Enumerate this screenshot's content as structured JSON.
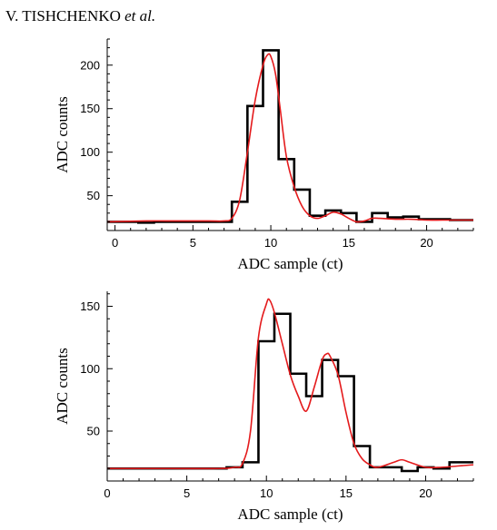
{
  "header": {
    "author": "V. TISHCHENKO",
    "etal": "et al."
  },
  "colors": {
    "histogram": "#000000",
    "fit": "#e41a1c",
    "axis": "#000000"
  },
  "chart_data": [
    {
      "type": "line",
      "xlabel": "ADC sample (ct)",
      "ylabel": "ADC counts",
      "xlim": [
        -0.5,
        23
      ],
      "ylim": [
        10,
        230
      ],
      "xticks": [
        0,
        5,
        10,
        15,
        20
      ],
      "yticks": [
        50,
        100,
        150,
        200
      ],
      "grid": false,
      "series": [
        {
          "style": "step",
          "x": [
            -0.5,
            0.5,
            1.5,
            2.5,
            3.5,
            4.5,
            5.5,
            6.5,
            7.5,
            8.5,
            9.5,
            10.5,
            11.5,
            12.5,
            13.5,
            14.5,
            15.5,
            16.5,
            17.5,
            18.5,
            19.5,
            20.5,
            21.5,
            22.5
          ],
          "values": [
            20,
            20,
            19,
            20,
            20,
            20,
            20,
            20,
            43,
            153,
            217,
            92,
            57,
            27,
            33,
            30,
            20,
            30,
            25,
            26,
            23,
            23,
            22,
            22
          ]
        },
        {
          "style": "smooth",
          "x": [
            -0.5,
            2,
            4,
            6,
            7,
            7.5,
            8,
            8.5,
            9,
            9.5,
            9.8,
            10,
            10.3,
            10.6,
            11,
            11.5,
            12,
            12.5,
            13,
            13.5,
            14,
            14.5,
            15,
            15.5,
            16,
            16.5,
            17,
            18,
            19,
            20,
            21,
            22,
            23
          ],
          "values": [
            20,
            21,
            21,
            21,
            21,
            24,
            45,
            100,
            160,
            200,
            212,
            210,
            190,
            150,
            95,
            60,
            38,
            27,
            24,
            27,
            31,
            29,
            24,
            20,
            21,
            24,
            24,
            23,
            23,
            22,
            22,
            22,
            22
          ]
        }
      ]
    },
    {
      "type": "line",
      "xlabel": "ADC sample (ct)",
      "ylabel": "ADC counts",
      "xlim": [
        0,
        23
      ],
      "ylim": [
        10,
        162
      ],
      "xticks": [
        0,
        5,
        10,
        15,
        20
      ],
      "yticks": [
        50,
        100,
        150
      ],
      "grid": false,
      "series": [
        {
          "style": "step",
          "x": [
            0,
            7.5,
            8.5,
            9.5,
            10.5,
            11.5,
            12.5,
            13.5,
            14.5,
            15.5,
            16.5,
            17.5,
            18.5,
            19.5,
            20.5,
            21.5
          ],
          "values": [
            20,
            21,
            25,
            122,
            144,
            96,
            78,
            107,
            94,
            38,
            21,
            21,
            18,
            21,
            20,
            25
          ]
        },
        {
          "style": "smooth",
          "x": [
            0,
            4,
            7,
            8,
            8.5,
            9,
            9.5,
            10,
            10.2,
            10.5,
            11,
            11.5,
            12,
            12.5,
            13,
            13.5,
            13.8,
            14,
            14.5,
            15,
            15.5,
            16,
            16.5,
            17,
            18,
            18.5,
            19,
            20,
            21,
            22,
            23
          ],
          "values": [
            20,
            20,
            20,
            21,
            24,
            50,
            125,
            152,
            155,
            145,
            120,
            95,
            78,
            66,
            85,
            107,
            112,
            110,
            95,
            65,
            40,
            28,
            23,
            21,
            25,
            27,
            25,
            21,
            21,
            22,
            23
          ]
        }
      ]
    }
  ]
}
